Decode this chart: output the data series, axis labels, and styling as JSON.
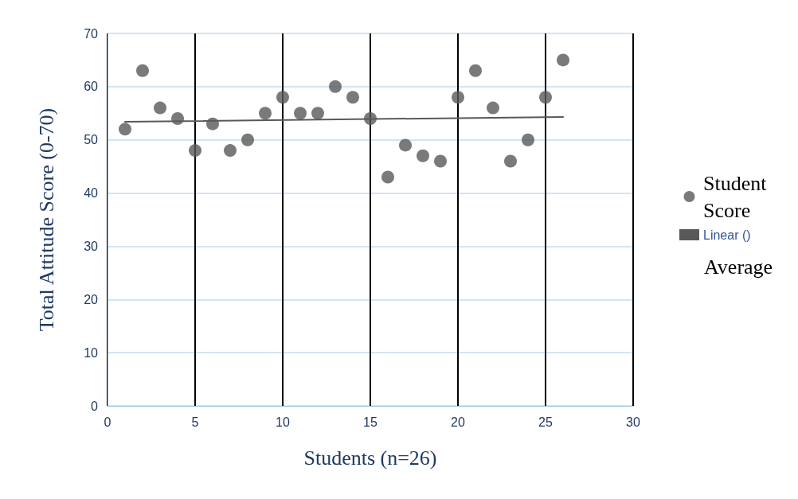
{
  "chart_data": {
    "type": "scatter",
    "xlabel": "Students (n=26)",
    "ylabel": "Total Attitude Score (0-70)",
    "xlim": [
      0,
      30
    ],
    "xticks": [
      0,
      5,
      10,
      15,
      20,
      25,
      30
    ],
    "ylim": [
      0,
      70
    ],
    "yticks": [
      0,
      10,
      20,
      30,
      40,
      50,
      60,
      70
    ],
    "grid": true,
    "legend": "right",
    "marker": "circle",
    "annotations": [
      "Average"
    ],
    "series": [
      {
        "name": "Student Score",
        "color": "#595959",
        "x": [
          1,
          2,
          3,
          4,
          5,
          6,
          7,
          8,
          9,
          10,
          11,
          12,
          13,
          14,
          15,
          16,
          17,
          18,
          19,
          20,
          21,
          22,
          23,
          24,
          25,
          26
        ],
        "values": [
          52,
          63,
          56,
          54,
          48,
          53,
          48,
          50,
          55,
          58,
          55,
          55,
          60,
          58,
          54,
          43,
          49,
          47,
          46,
          58,
          63,
          56,
          46,
          50,
          58,
          65
        ]
      },
      {
        "name": "Linear ()",
        "type": "line",
        "line_style": "solid",
        "marker": "none",
        "color": "#595959",
        "x": [
          1,
          26
        ],
        "values": [
          53.4,
          54.3
        ]
      }
    ]
  }
}
